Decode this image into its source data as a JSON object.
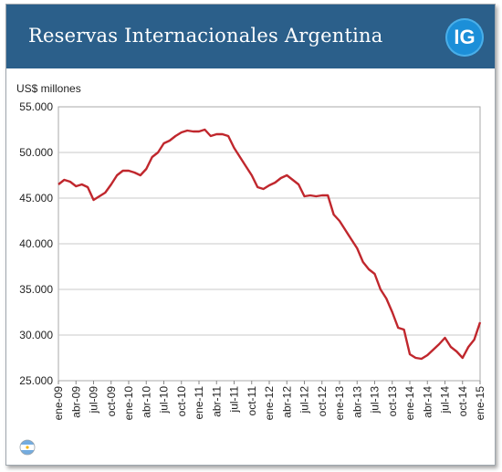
{
  "header": {
    "title": "Reservas Internacionales Argentina",
    "logo_text": "IG",
    "bg_color": "#2b5f8a",
    "logo_color": "#1c8fd8"
  },
  "flag_icon": "argentina-flag-icon",
  "chart_data": {
    "type": "line",
    "title": "",
    "ylabel": "US$ millones",
    "xlabel": "",
    "ylim": [
      25000,
      55000
    ],
    "y_ticks": [
      25000,
      30000,
      35000,
      40000,
      45000,
      50000,
      55000
    ],
    "y_tick_labels": [
      "25.000",
      "30.000",
      "35.000",
      "40.000",
      "45.000",
      "50.000",
      "55.000"
    ],
    "grid": true,
    "line_color": "#c0272d",
    "x_ticks": [
      "ene-09",
      "abr-09",
      "jul-09",
      "oct-09",
      "ene-10",
      "abr-10",
      "jul-10",
      "oct-10",
      "ene-11",
      "abr-11",
      "jul-11",
      "oct-11",
      "ene-12",
      "abr-12",
      "jul-12",
      "oct-12",
      "ene-13",
      "abr-13",
      "jul-13",
      "oct-13",
      "ene-14",
      "abr-14",
      "jul-14",
      "oct-14",
      "ene-15"
    ],
    "series": [
      {
        "points": [
          [
            "ene-09",
            46500
          ],
          [
            "feb-09",
            47000
          ],
          [
            "mar-09",
            46800
          ],
          [
            "abr-09",
            46300
          ],
          [
            "may-09",
            46500
          ],
          [
            "jun-09",
            46200
          ],
          [
            "jul-09",
            44800
          ],
          [
            "ago-09",
            45200
          ],
          [
            "sep-09",
            45600
          ],
          [
            "oct-09",
            46500
          ],
          [
            "nov-09",
            47500
          ],
          [
            "dic-09",
            48000
          ],
          [
            "ene-10",
            48000
          ],
          [
            "feb-10",
            47800
          ],
          [
            "mar-10",
            47500
          ],
          [
            "abr-10",
            48200
          ],
          [
            "may-10",
            49500
          ],
          [
            "jun-10",
            50000
          ],
          [
            "jul-10",
            51000
          ],
          [
            "ago-10",
            51300
          ],
          [
            "sep-10",
            51800
          ],
          [
            "oct-10",
            52200
          ],
          [
            "nov-10",
            52400
          ],
          [
            "dic-10",
            52300
          ],
          [
            "ene-11",
            52300
          ],
          [
            "feb-11",
            52500
          ],
          [
            "mar-11",
            51800
          ],
          [
            "abr-11",
            52000
          ],
          [
            "may-11",
            52000
          ],
          [
            "jun-11",
            51800
          ],
          [
            "jul-11",
            50500
          ],
          [
            "ago-11",
            49500
          ],
          [
            "sep-11",
            48500
          ],
          [
            "oct-11",
            47500
          ],
          [
            "nov-11",
            46200
          ],
          [
            "dic-11",
            46000
          ],
          [
            "ene-12",
            46400
          ],
          [
            "feb-12",
            46700
          ],
          [
            "mar-12",
            47200
          ],
          [
            "abr-12",
            47500
          ],
          [
            "may-12",
            47000
          ],
          [
            "jun-12",
            46500
          ],
          [
            "jul-12",
            45200
          ],
          [
            "ago-12",
            45300
          ],
          [
            "sep-12",
            45200
          ],
          [
            "oct-12",
            45300
          ],
          [
            "nov-12",
            45300
          ],
          [
            "dic-12",
            43200
          ],
          [
            "ene-13",
            42500
          ],
          [
            "feb-13",
            41500
          ],
          [
            "mar-13",
            40500
          ],
          [
            "abr-13",
            39500
          ],
          [
            "may-13",
            38000
          ],
          [
            "jun-13",
            37200
          ],
          [
            "jul-13",
            36700
          ],
          [
            "ago-13",
            35000
          ],
          [
            "sep-13",
            34000
          ],
          [
            "oct-13",
            32500
          ],
          [
            "nov-13",
            30800
          ],
          [
            "dic-13",
            30600
          ],
          [
            "ene-14",
            27900
          ],
          [
            "feb-14",
            27500
          ],
          [
            "mar-14",
            27400
          ],
          [
            "abr-14",
            27800
          ],
          [
            "may-14",
            28400
          ],
          [
            "jun-14",
            29000
          ],
          [
            "jul-14",
            29700
          ],
          [
            "ago-14",
            28700
          ],
          [
            "sep-14",
            28200
          ],
          [
            "oct-14",
            27500
          ],
          [
            "nov-14",
            28700
          ],
          [
            "dic-14",
            29500
          ],
          [
            "ene-15",
            31400
          ]
        ]
      }
    ]
  }
}
